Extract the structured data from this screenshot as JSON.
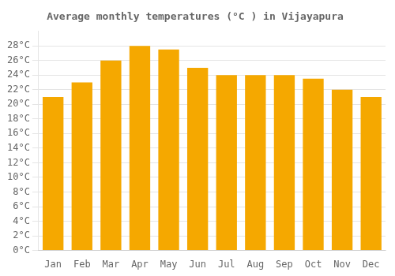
{
  "chart_data": {
    "type": "bar",
    "title": "Average monthly temperatures (°C ) in Vijayapura",
    "categories": [
      "Jan",
      "Feb",
      "Mar",
      "Apr",
      "May",
      "Jun",
      "Jul",
      "Aug",
      "Sep",
      "Oct",
      "Nov",
      "Dec"
    ],
    "values": [
      21,
      23,
      26,
      28,
      27.5,
      25,
      24,
      24,
      24,
      23.5,
      22,
      21
    ],
    "color": "#F5A800",
    "ylim": [
      0,
      30
    ],
    "yticks": [
      {
        "value": 0,
        "label": "0°C"
      },
      {
        "value": 2,
        "label": "2°C"
      },
      {
        "value": 4,
        "label": "4°C"
      },
      {
        "value": 6,
        "label": "6°C"
      },
      {
        "value": 8,
        "label": "8°C"
      },
      {
        "value": 10,
        "label": "10°C"
      },
      {
        "value": 12,
        "label": "12°C"
      },
      {
        "value": 14,
        "label": "14°C"
      },
      {
        "value": 16,
        "label": "16°C"
      },
      {
        "value": 18,
        "label": "18°C"
      },
      {
        "value": 20,
        "label": "20°C"
      },
      {
        "value": 22,
        "label": "22°C"
      },
      {
        "value": 24,
        "label": "24°C"
      },
      {
        "value": 26,
        "label": "26°C"
      },
      {
        "value": 28,
        "label": "28°C"
      }
    ],
    "grid": true
  }
}
